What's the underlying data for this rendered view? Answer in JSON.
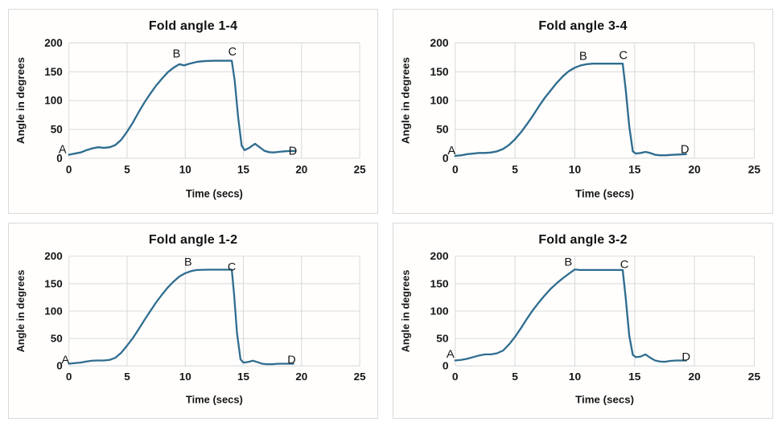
{
  "styles": {
    "line_color": "#2f6d8f",
    "grid_color": "#d9d9d9",
    "text_color": "#161616",
    "card_border": "#d9d9d9",
    "background": "#ffffff"
  },
  "chart_data": [
    {
      "type": "line",
      "title": "Fold angle 1-4",
      "xlabel": "Time (secs)",
      "ylabel": "Angle in degrees",
      "xlim": [
        0,
        25
      ],
      "ylim": [
        0,
        200
      ],
      "x_ticks": [
        0,
        5,
        10,
        15,
        20,
        25
      ],
      "y_ticks": [
        0,
        50,
        100,
        150,
        200
      ],
      "grid": true,
      "legend": false,
      "points": [
        [
          0,
          6
        ],
        [
          0.5,
          8
        ],
        [
          1,
          10
        ],
        [
          1.5,
          14
        ],
        [
          2,
          17
        ],
        [
          2.5,
          19
        ],
        [
          3,
          18
        ],
        [
          3.5,
          19
        ],
        [
          4,
          23
        ],
        [
          4.5,
          32
        ],
        [
          5,
          46
        ],
        [
          5.5,
          62
        ],
        [
          6,
          80
        ],
        [
          6.5,
          97
        ],
        [
          7,
          112
        ],
        [
          7.5,
          126
        ],
        [
          8,
          138
        ],
        [
          8.5,
          149
        ],
        [
          9,
          157
        ],
        [
          9.5,
          163
        ],
        [
          9.9,
          161
        ],
        [
          10.4,
          164
        ],
        [
          11,
          167
        ],
        [
          11.7,
          168.5
        ],
        [
          12.5,
          169
        ],
        [
          13.2,
          169
        ],
        [
          14,
          169
        ],
        [
          14.25,
          135
        ],
        [
          14.55,
          70
        ],
        [
          14.85,
          22
        ],
        [
          15.1,
          14
        ],
        [
          15.5,
          18
        ],
        [
          16,
          25
        ],
        [
          16.4,
          19
        ],
        [
          16.8,
          13
        ],
        [
          17.2,
          10.5
        ],
        [
          17.6,
          10
        ],
        [
          18,
          11
        ],
        [
          18.5,
          12
        ],
        [
          19,
          12.5
        ],
        [
          19.5,
          12.5
        ]
      ],
      "annotations": [
        {
          "text": "A",
          "t": -0.55,
          "a": 16
        },
        {
          "text": "B",
          "t": 9.25,
          "a": 182
        },
        {
          "text": "C",
          "t": 14.05,
          "a": 185
        },
        {
          "text": "D",
          "t": 19.25,
          "a": 13
        }
      ]
    },
    {
      "type": "line",
      "title": "Fold angle 3-4",
      "xlabel": "Time (secs)",
      "ylabel": "Angle in degrees",
      "xlim": [
        0,
        25
      ],
      "ylim": [
        0,
        200
      ],
      "x_ticks": [
        0,
        5,
        10,
        15,
        20,
        25
      ],
      "y_ticks": [
        0,
        50,
        100,
        150,
        200
      ],
      "grid": true,
      "legend": false,
      "points": [
        [
          0,
          4
        ],
        [
          0.5,
          5
        ],
        [
          1,
          7
        ],
        [
          1.5,
          8
        ],
        [
          2,
          9
        ],
        [
          2.5,
          9
        ],
        [
          3,
          10
        ],
        [
          3.5,
          12
        ],
        [
          4,
          16
        ],
        [
          4.5,
          23
        ],
        [
          5,
          33
        ],
        [
          5.5,
          45
        ],
        [
          6,
          59
        ],
        [
          6.5,
          74
        ],
        [
          7,
          90
        ],
        [
          7.5,
          105
        ],
        [
          8,
          118
        ],
        [
          8.5,
          131
        ],
        [
          9,
          142
        ],
        [
          9.5,
          151
        ],
        [
          10,
          157
        ],
        [
          10.5,
          161
        ],
        [
          11,
          163
        ],
        [
          11.5,
          164
        ],
        [
          12.5,
          164
        ],
        [
          13.5,
          164
        ],
        [
          14,
          164
        ],
        [
          14.25,
          120
        ],
        [
          14.55,
          55
        ],
        [
          14.85,
          12
        ],
        [
          15.1,
          8
        ],
        [
          15.5,
          9
        ],
        [
          15.9,
          11
        ],
        [
          16.3,
          9
        ],
        [
          16.7,
          6
        ],
        [
          17.1,
          5
        ],
        [
          17.6,
          5
        ],
        [
          18.2,
          6
        ],
        [
          18.8,
          6.5
        ],
        [
          19.3,
          7
        ]
      ],
      "annotations": [
        {
          "text": "A",
          "t": -0.3,
          "a": 14
        },
        {
          "text": "B",
          "t": 10.7,
          "a": 178
        },
        {
          "text": "C",
          "t": 14.05,
          "a": 179
        },
        {
          "text": "D",
          "t": 19.2,
          "a": 16
        }
      ]
    },
    {
      "type": "line",
      "title": "Fold angle 1-2",
      "xlabel": "Time (secs)",
      "ylabel": "Angle in degrees",
      "xlim": [
        0,
        25
      ],
      "ylim": [
        0,
        200
      ],
      "x_ticks": [
        0,
        5,
        10,
        15,
        20,
        25
      ],
      "y_ticks": [
        0,
        50,
        100,
        150,
        200
      ],
      "grid": true,
      "legend": false,
      "points": [
        [
          0,
          4
        ],
        [
          0.5,
          5
        ],
        [
          1,
          6
        ],
        [
          1.5,
          8
        ],
        [
          2,
          9.5
        ],
        [
          2.5,
          10
        ],
        [
          3,
          10
        ],
        [
          3.5,
          11
        ],
        [
          4,
          15
        ],
        [
          4.5,
          24
        ],
        [
          5,
          37
        ],
        [
          5.5,
          51
        ],
        [
          6,
          67
        ],
        [
          6.5,
          84
        ],
        [
          7,
          100
        ],
        [
          7.5,
          116
        ],
        [
          8,
          130
        ],
        [
          8.5,
          143
        ],
        [
          9,
          154
        ],
        [
          9.5,
          163
        ],
        [
          10,
          169
        ],
        [
          10.5,
          173
        ],
        [
          11,
          175
        ],
        [
          12,
          175.5
        ],
        [
          13,
          175.5
        ],
        [
          14,
          175.5
        ],
        [
          14.2,
          130
        ],
        [
          14.45,
          60
        ],
        [
          14.75,
          12
        ],
        [
          15,
          6
        ],
        [
          15.4,
          7
        ],
        [
          15.8,
          9.5
        ],
        [
          16.2,
          7
        ],
        [
          16.6,
          4
        ],
        [
          17,
          3
        ],
        [
          17.5,
          3
        ],
        [
          18,
          4
        ],
        [
          18.5,
          4
        ],
        [
          19,
          4
        ],
        [
          19.3,
          4
        ]
      ],
      "annotations": [
        {
          "text": "A",
          "t": -0.3,
          "a": 12
        },
        {
          "text": "B",
          "t": 10.25,
          "a": 190
        },
        {
          "text": "C",
          "t": 14.0,
          "a": 181
        },
        {
          "text": "D",
          "t": 19.15,
          "a": 12
        }
      ]
    },
    {
      "type": "line",
      "title": "Fold angle 3-2",
      "xlabel": "Time (secs)",
      "ylabel": "Angle in degrees",
      "xlim": [
        0,
        25
      ],
      "ylim": [
        0,
        200
      ],
      "x_ticks": [
        0,
        5,
        10,
        15,
        20,
        25
      ],
      "y_ticks": [
        0,
        50,
        100,
        150,
        200
      ],
      "grid": true,
      "legend": false,
      "points": [
        [
          0,
          10
        ],
        [
          0.5,
          11
        ],
        [
          1,
          13
        ],
        [
          1.5,
          16
        ],
        [
          2,
          19
        ],
        [
          2.5,
          21
        ],
        [
          3,
          21
        ],
        [
          3.5,
          23
        ],
        [
          4,
          28
        ],
        [
          4.5,
          39
        ],
        [
          5,
          53
        ],
        [
          5.5,
          69
        ],
        [
          6,
          86
        ],
        [
          6.5,
          102
        ],
        [
          7,
          116
        ],
        [
          7.5,
          129
        ],
        [
          8,
          141
        ],
        [
          8.5,
          151
        ],
        [
          9,
          160
        ],
        [
          9.5,
          168
        ],
        [
          10,
          176
        ],
        [
          10.4,
          175
        ],
        [
          11,
          175
        ],
        [
          12,
          175
        ],
        [
          13,
          175
        ],
        [
          14,
          175
        ],
        [
          14.25,
          125
        ],
        [
          14.55,
          55
        ],
        [
          14.85,
          20
        ],
        [
          15.1,
          16
        ],
        [
          15.5,
          17
        ],
        [
          15.9,
          21
        ],
        [
          16.3,
          15
        ],
        [
          16.7,
          10
        ],
        [
          17.1,
          8
        ],
        [
          17.5,
          7.5
        ],
        [
          18,
          9
        ],
        [
          18.5,
          10
        ],
        [
          19,
          10
        ],
        [
          19.3,
          10
        ]
      ],
      "annotations": [
        {
          "text": "A",
          "t": -0.4,
          "a": 22
        },
        {
          "text": "B",
          "t": 9.45,
          "a": 190
        },
        {
          "text": "C",
          "t": 14.15,
          "a": 186
        },
        {
          "text": "D",
          "t": 19.3,
          "a": 17
        }
      ]
    }
  ]
}
